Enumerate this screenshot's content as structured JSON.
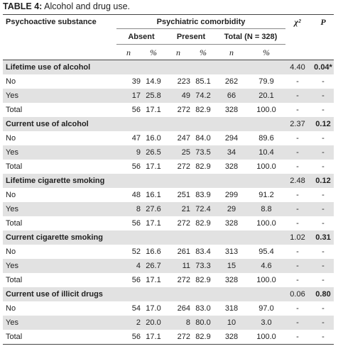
{
  "caption": {
    "label": "TABLE 4:",
    "text": " Alcohol and drug use."
  },
  "header": {
    "substance": "Psychoactive substance",
    "comorbidity": "Psychiatric comorbidity",
    "chi2": "χ²",
    "p": "P",
    "absent": "Absent",
    "present": "Present",
    "total": "Total (N = 328)",
    "n": "n",
    "pct": "%"
  },
  "sections": [
    {
      "title": "Lifetime use of alcohol",
      "chi2": "4.40",
      "p": "0.04*",
      "rows": [
        {
          "label": "No",
          "a_n": "39",
          "a_p": "14.9",
          "p_n": "223",
          "p_p": "85.1",
          "t_n": "262",
          "t_p": "79.9",
          "chi": "-",
          "pv": "-"
        },
        {
          "label": "Yes",
          "a_n": "17",
          "a_p": "25.8",
          "p_n": "49",
          "p_p": "74.2",
          "t_n": "66",
          "t_p": "20.1",
          "chi": "-",
          "pv": "-"
        },
        {
          "label": "Total",
          "a_n": "56",
          "a_p": "17.1",
          "p_n": "272",
          "p_p": "82.9",
          "t_n": "328",
          "t_p": "100.0",
          "chi": "-",
          "pv": "-"
        }
      ]
    },
    {
      "title": "Current use of alcohol",
      "chi2": "2.37",
      "p": "0.12",
      "rows": [
        {
          "label": "No",
          "a_n": "47",
          "a_p": "16.0",
          "p_n": "247",
          "p_p": "84.0",
          "t_n": "294",
          "t_p": "89.6",
          "chi": "-",
          "pv": "-"
        },
        {
          "label": "Yes",
          "a_n": "9",
          "a_p": "26.5",
          "p_n": "25",
          "p_p": "73.5",
          "t_n": "34",
          "t_p": "10.4",
          "chi": "-",
          "pv": "-"
        },
        {
          "label": "Total",
          "a_n": "56",
          "a_p": "17.1",
          "p_n": "272",
          "p_p": "82.9",
          "t_n": "328",
          "t_p": "100.0",
          "chi": "-",
          "pv": "-"
        }
      ]
    },
    {
      "title": "Lifetime cigarette smoking",
      "chi2": "2.48",
      "p": "0.12",
      "rows": [
        {
          "label": "No",
          "a_n": "48",
          "a_p": "16.1",
          "p_n": "251",
          "p_p": "83.9",
          "t_n": "299",
          "t_p": "91.2",
          "chi": "-",
          "pv": "-"
        },
        {
          "label": "Yes",
          "a_n": "8",
          "a_p": "27.6",
          "p_n": "21",
          "p_p": "72.4",
          "t_n": "29",
          "t_p": "8.8",
          "chi": "-",
          "pv": "-"
        },
        {
          "label": "Total",
          "a_n": "56",
          "a_p": "17.1",
          "p_n": "272",
          "p_p": "82.9",
          "t_n": "328",
          "t_p": "100.0",
          "chi": "-",
          "pv": "-"
        }
      ]
    },
    {
      "title": "Current cigarette smoking",
      "chi2": "1.02",
      "p": "0.31",
      "rows": [
        {
          "label": "No",
          "a_n": "52",
          "a_p": "16.6",
          "p_n": "261",
          "p_p": "83.4",
          "t_n": "313",
          "t_p": "95.4",
          "chi": "-",
          "pv": "-"
        },
        {
          "label": "Yes",
          "a_n": "4",
          "a_p": "26.7",
          "p_n": "11",
          "p_p": "73.3",
          "t_n": "15",
          "t_p": "4.6",
          "chi": "-",
          "pv": "-"
        },
        {
          "label": "Total",
          "a_n": "56",
          "a_p": "17.1",
          "p_n": "272",
          "p_p": "82.9",
          "t_n": "328",
          "t_p": "100.0",
          "chi": "-",
          "pv": "-"
        }
      ]
    },
    {
      "title": "Current use of illicit drugs",
      "chi2": "0.06",
      "p": "0.80",
      "rows": [
        {
          "label": "No",
          "a_n": "54",
          "a_p": "17.0",
          "p_n": "264",
          "p_p": "83.0",
          "t_n": "318",
          "t_p": "97.0",
          "chi": "-",
          "pv": "-"
        },
        {
          "label": "Yes",
          "a_n": "2",
          "a_p": "20.0",
          "p_n": "8",
          "p_p": "80.0",
          "t_n": "10",
          "t_p": "3.0",
          "chi": "-",
          "pv": "-"
        },
        {
          "label": "Total",
          "a_n": "56",
          "a_p": "17.1",
          "p_n": "272",
          "p_p": "82.9",
          "t_n": "328",
          "t_p": "100.0",
          "chi": "-",
          "pv": "-"
        }
      ]
    }
  ]
}
